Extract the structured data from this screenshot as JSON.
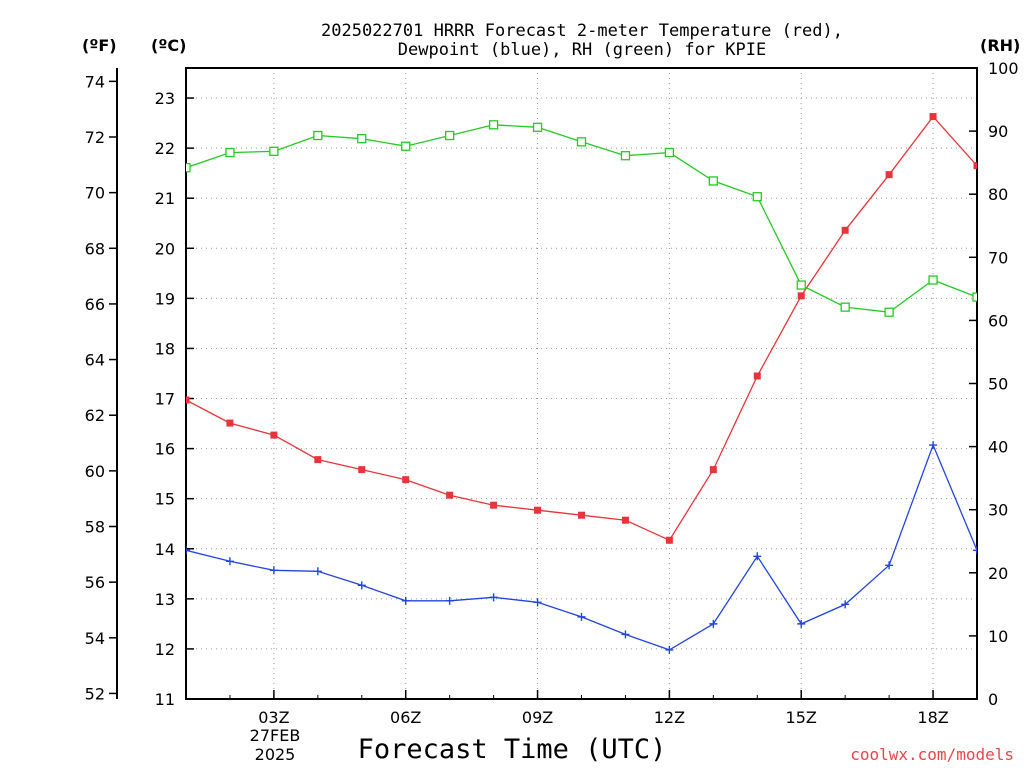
{
  "chart_data": {
    "type": "line",
    "title_lines": [
      "2025022701 HRRR Forecast 2-meter Temperature (red),",
      "Dewpoint (blue), RH (green) for KPIE"
    ],
    "xlabel": "Forecast Time (UTC)",
    "credit": "coolwx.com/models",
    "unit_labels": {
      "f": "(ºF)",
      "c": "(ºC)",
      "rh": "(RH)"
    },
    "date_label": [
      "27FEB",
      "2025"
    ],
    "x_hours": [
      1,
      2,
      3,
      4,
      5,
      6,
      7,
      8,
      9,
      10,
      11,
      12,
      13,
      14,
      15,
      16,
      17,
      18,
      19
    ],
    "x_ticks": [
      {
        "hour": 3,
        "label": "03Z"
      },
      {
        "hour": 6,
        "label": "06Z"
      },
      {
        "hour": 9,
        "label": "09Z"
      },
      {
        "hour": 12,
        "label": "12Z"
      },
      {
        "hour": 15,
        "label": "15Z"
      },
      {
        "hour": 18,
        "label": "18Z"
      }
    ],
    "xlim": [
      1,
      19
    ],
    "axis_c": {
      "min": 11,
      "max": 23.6,
      "ticks": [
        11,
        12,
        13,
        14,
        15,
        16,
        17,
        18,
        19,
        20,
        21,
        22,
        23
      ]
    },
    "axis_f": {
      "ticks": [
        52,
        54,
        56,
        58,
        60,
        62,
        64,
        66,
        68,
        70,
        72,
        74
      ]
    },
    "axis_rh": {
      "min": 0,
      "max": 100,
      "ticks": [
        0,
        10,
        20,
        30,
        40,
        50,
        60,
        70,
        80,
        90,
        100
      ]
    },
    "series": [
      {
        "key": "temperature",
        "color": "#e8343a",
        "marker": "filled-square",
        "axis": "c",
        "values": [
          16.97,
          16.51,
          16.27,
          15.78,
          15.58,
          15.38,
          15.07,
          14.87,
          14.77,
          14.67,
          14.57,
          14.17,
          15.58,
          17.45,
          19.05,
          20.36,
          21.47,
          22.63,
          21.65
        ]
      },
      {
        "key": "dewpoint",
        "color": "#2244e0",
        "marker": "plus",
        "axis": "c",
        "values": [
          13.97,
          13.75,
          13.57,
          13.55,
          13.27,
          12.96,
          12.96,
          13.03,
          12.93,
          12.64,
          12.29,
          11.98,
          12.5,
          13.85,
          12.5,
          12.89,
          13.67,
          16.07,
          13.97
        ]
      },
      {
        "key": "rh",
        "color": "#22cc22",
        "marker": "open-square",
        "axis": "rh",
        "values": [
          84.2,
          86.6,
          86.8,
          89.3,
          88.8,
          87.6,
          89.3,
          91.0,
          90.6,
          88.3,
          86.1,
          86.6,
          82.1,
          79.6,
          65.6,
          62.1,
          61.3,
          66.4,
          63.7
        ]
      }
    ],
    "grid": true,
    "legend": "none"
  }
}
